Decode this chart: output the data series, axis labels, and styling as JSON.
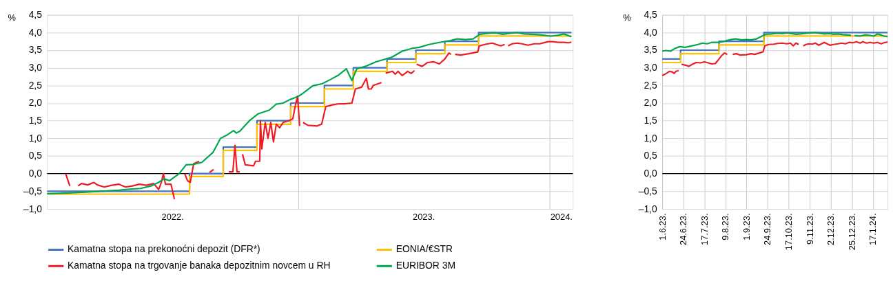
{
  "chart_data": [
    {
      "type": "line",
      "ylabel": "%",
      "xlim": [
        "2022-01-01",
        "2024-02-04"
      ],
      "xticks": [
        {
          "value": "2022-07-02",
          "label": "2022."
        },
        {
          "value": "2023-01-01",
          "label": null
        },
        {
          "value": "2023-07-02",
          "label": "2023."
        },
        {
          "value": "2024-01-01",
          "label": null
        },
        {
          "value": "2024-01-18",
          "label": "2024."
        }
      ],
      "ylim": [
        -1,
        4.5
      ],
      "yticks": [
        {
          "value": -1,
          "label": "–1,0"
        },
        {
          "value": -0.5,
          "label": "–0,5"
        },
        {
          "value": 0,
          "label": "0,0"
        },
        {
          "value": 0.5,
          "label": "0,5"
        },
        {
          "value": 1,
          "label": "1,0"
        },
        {
          "value": 1.5,
          "label": "1,5"
        },
        {
          "value": 2,
          "label": "2,0"
        },
        {
          "value": 2.5,
          "label": "2,5"
        },
        {
          "value": 3,
          "label": "3,0"
        },
        {
          "value": 3.5,
          "label": "3,5"
        },
        {
          "value": 4,
          "label": "4,0"
        },
        {
          "value": 4.5,
          "label": "4,5"
        }
      ],
      "grid": true,
      "legend": "bottom",
      "ref_lines": [
        {
          "axis": "y",
          "value": 0,
          "color": "#000000"
        }
      ],
      "series": [
        {
          "name": "Kamatna stopa na prekonoćni depozit (DFR*)",
          "color": "#4472c4",
          "type": "step",
          "x": [
            "2022-01-01",
            "2022-07-27",
            "2022-09-14",
            "2022-11-02",
            "2022-12-21",
            "2023-02-08",
            "2023-03-22",
            "2023-05-10",
            "2023-06-21",
            "2023-08-02",
            "2023-09-20",
            "2024-02-02"
          ],
          "values": [
            -0.5,
            0,
            0.75,
            1.5,
            2.0,
            2.5,
            3.0,
            3.25,
            3.5,
            3.75,
            4.0,
            4.0
          ]
        },
        {
          "name": "EONIA/€STR",
          "color": "#ffc000",
          "type": "step",
          "x": [
            "2022-01-01",
            "2022-07-27",
            "2022-09-14",
            "2022-11-02",
            "2022-12-21",
            "2023-02-08",
            "2023-03-22",
            "2023-05-10",
            "2023-06-21",
            "2023-08-02",
            "2023-09-20",
            "2024-02-02"
          ],
          "values": [
            -0.58,
            -0.08,
            0.66,
            1.4,
            1.9,
            2.4,
            2.9,
            3.15,
            3.4,
            3.65,
            3.9,
            3.9
          ]
        },
        {
          "name": "Kamatna stopa na trgovanje banaka depozitnim novcem u RH",
          "color": "#ed1c24",
          "type": "line",
          "x": [
            "2022-01-28",
            "2022-02-03",
            "2022-02-10",
            "2022-02-15",
            "2022-02-20",
            "2022-03-01",
            "2022-03-10",
            "2022-03-15",
            "2022-03-25",
            "2022-04-05",
            "2022-04-15",
            "2022-04-25",
            "2022-05-05",
            "2022-05-15",
            "2022-05-25",
            "2022-06-05",
            "2022-06-12",
            "2022-06-16",
            "2022-06-19",
            "2022-06-22",
            "2022-06-30",
            "2022-07-05",
            "2022-07-12",
            "2022-07-20",
            "2022-07-24",
            "2022-07-28",
            "2022-08-02",
            "2022-08-10",
            "2022-08-18",
            "2022-08-25",
            "2022-08-31",
            "2022-09-10",
            "2022-09-22",
            "2022-09-28",
            "2022-10-01",
            "2022-10-04",
            "2022-10-08",
            "2022-10-10",
            "2022-10-12",
            "2022-10-16",
            "2022-10-28",
            "2022-10-31",
            "2022-11-06",
            "2022-11-07",
            "2022-11-09",
            "2022-11-14",
            "2022-11-18",
            "2022-11-22",
            "2022-11-26",
            "2022-11-30",
            "2022-12-05",
            "2022-12-10",
            "2022-12-18",
            "2022-12-24",
            "2022-12-28",
            "2022-12-31",
            "2023-01-03",
            "2023-01-05",
            "2023-01-08",
            "2023-01-15",
            "2023-01-28",
            "2023-02-04",
            "2023-02-10",
            "2023-02-20",
            "2023-03-01",
            "2023-03-10",
            "2023-03-20",
            "2023-03-25",
            "2023-04-03",
            "2023-04-10",
            "2023-04-13",
            "2023-04-17",
            "2023-04-20",
            "2023-05-02",
            "2023-05-05",
            "2023-05-08",
            "2023-05-18",
            "2023-05-22",
            "2023-05-26",
            "2023-06-01",
            "2023-06-06",
            "2023-06-09",
            "2023-06-14",
            "2023-06-19",
            "2023-06-20",
            "2023-06-22",
            "2023-06-30",
            "2023-07-08",
            "2023-07-17",
            "2023-07-25",
            "2023-08-02",
            "2023-08-08",
            "2023-08-11",
            "2023-08-14",
            "2023-08-17",
            "2023-08-25",
            "2023-09-06",
            "2023-09-19",
            "2023-09-21",
            "2023-10-01",
            "2023-10-10",
            "2023-10-22",
            "2023-10-28",
            "2023-10-30",
            "2023-11-02",
            "2023-11-08",
            "2023-11-15",
            "2023-11-22",
            "2023-12-01",
            "2023-12-10",
            "2023-12-18",
            "2023-12-30",
            "2024-01-06",
            "2024-01-14",
            "2024-01-22",
            "2024-01-29",
            "2024-02-02"
          ],
          "values": [
            0.0,
            -0.35,
            null,
            -0.35,
            -0.28,
            -0.32,
            -0.25,
            -0.32,
            -0.38,
            -0.33,
            -0.3,
            -0.38,
            -0.35,
            -0.3,
            -0.33,
            -0.28,
            -0.45,
            -0.25,
            0.0,
            -0.3,
            -0.3,
            -0.72,
            null,
            0.0,
            -0.2,
            -0.25,
            0.28,
            0.35,
            null,
            0.03,
            0.12,
            null,
            0.05,
            0.05,
            0.8,
            0.05,
            0.05,
            null,
            0.55,
            0.25,
            0.22,
            0.35,
            0.35,
            1.5,
            0.7,
            1.45,
            1.0,
            1.45,
            0.9,
            1.4,
            1.3,
            1.45,
            1.5,
            1.55,
            1.95,
            2.2,
            1.35,
            null,
            1.45,
            1.37,
            1.35,
            1.4,
            1.9,
            1.95,
            1.98,
            1.98,
            2.0,
            2.4,
            2.45,
            2.7,
            2.4,
            2.4,
            2.5,
            2.58,
            null,
            2.85,
            2.9,
            2.82,
            2.9,
            2.78,
            2.85,
            2.9,
            2.84,
            2.92,
            null,
            3.1,
            3.04,
            3.15,
            3.17,
            3.11,
            3.25,
            3.42,
            3.38,
            null,
            3.38,
            3.36,
            3.4,
            3.45,
            3.62,
            3.67,
            3.7,
            3.62,
            3.66,
            null,
            3.62,
            3.68,
            3.7,
            3.68,
            3.64,
            3.68,
            3.68,
            3.74,
            3.74,
            3.72,
            3.72,
            3.71,
            3.73
          ]
        },
        {
          "name": "EURIBOR 3M",
          "color": "#00a650",
          "type": "line",
          "x": [
            "2022-01-01",
            "2022-01-20",
            "2022-02-10",
            "2022-03-03",
            "2022-03-20",
            "2022-04-15",
            "2022-05-01",
            "2022-05-17",
            "2022-06-01",
            "2022-06-12",
            "2022-06-20",
            "2022-06-28",
            "2022-07-12",
            "2022-07-22",
            "2022-08-01",
            "2022-08-14",
            "2022-08-30",
            "2022-09-10",
            "2022-09-20",
            "2022-09-29",
            "2022-10-03",
            "2022-10-08",
            "2022-10-22",
            "2022-11-04",
            "2022-11-20",
            "2022-11-30",
            "2022-12-10",
            "2022-12-20",
            "2022-12-27",
            "2023-01-02",
            "2023-01-08",
            "2023-01-22",
            "2023-02-05",
            "2023-02-17",
            "2023-03-01",
            "2023-03-12",
            "2023-03-16",
            "2023-03-20",
            "2023-03-27",
            "2023-04-10",
            "2023-04-24",
            "2023-05-17",
            "2023-06-01",
            "2023-06-15",
            "2023-06-26",
            "2023-07-10",
            "2023-07-25",
            "2023-08-10",
            "2023-08-20",
            "2023-09-01",
            "2023-09-12",
            "2023-09-22",
            "2023-10-05",
            "2023-10-15",
            "2023-10-25",
            "2023-11-05",
            "2023-11-15",
            "2023-11-25",
            "2023-12-05",
            "2023-12-15",
            "2023-12-24",
            "2024-01-03",
            "2024-01-13",
            "2024-01-22",
            "2024-02-02"
          ],
          "values": [
            -0.57,
            -0.56,
            -0.54,
            -0.52,
            -0.5,
            -0.47,
            -0.44,
            -0.42,
            -0.35,
            -0.25,
            -0.15,
            -0.2,
            0.0,
            0.25,
            0.26,
            0.32,
            0.6,
            1.0,
            1.1,
            1.22,
            1.15,
            1.2,
            1.5,
            1.7,
            1.8,
            1.97,
            2.0,
            2.1,
            2.15,
            2.2,
            2.28,
            2.49,
            2.55,
            2.67,
            2.8,
            2.97,
            2.8,
            2.64,
            2.97,
            3.05,
            3.17,
            3.3,
            3.47,
            3.55,
            3.58,
            3.66,
            3.72,
            3.77,
            3.82,
            3.8,
            3.82,
            3.95,
            3.98,
            3.99,
            3.95,
            3.98,
            4.0,
            3.96,
            3.95,
            3.94,
            3.92,
            3.9,
            3.92,
            3.96,
            3.88
          ]
        }
      ]
    },
    {
      "type": "line",
      "ylabel": "%",
      "xlim": [
        "2023-06-01",
        "2024-02-02"
      ],
      "xticks": [
        {
          "value": "2023-06-01",
          "label": "1.6.23."
        },
        {
          "value": "2023-06-24",
          "label": "24.6.23."
        },
        {
          "value": "2023-07-17",
          "label": "17.7.23."
        },
        {
          "value": "2023-08-09",
          "label": "9.8.23."
        },
        {
          "value": "2023-09-01",
          "label": "1.9.23."
        },
        {
          "value": "2023-09-24",
          "label": "24.9.23."
        },
        {
          "value": "2023-10-17",
          "label": "17.10.23."
        },
        {
          "value": "2023-11-09",
          "label": "9.11.23."
        },
        {
          "value": "2023-12-02",
          "label": "2.12.23."
        },
        {
          "value": "2023-12-25",
          "label": "25.12.23."
        },
        {
          "value": "2024-01-17",
          "label": "17.1.24."
        }
      ],
      "ylim": [
        -1,
        4.5
      ],
      "yticks": [
        {
          "value": -1,
          "label": "–1,0"
        },
        {
          "value": -0.5,
          "label": "–0,5"
        },
        {
          "value": 0,
          "label": "0,0"
        },
        {
          "value": 0.5,
          "label": "0,5"
        },
        {
          "value": 1,
          "label": "1,0"
        },
        {
          "value": 1.5,
          "label": "1,5"
        },
        {
          "value": 2,
          "label": "2,0"
        },
        {
          "value": 2.5,
          "label": "2,5"
        },
        {
          "value": 3,
          "label": "3,0"
        },
        {
          "value": 3.5,
          "label": "3,5"
        },
        {
          "value": 4,
          "label": "4,0"
        },
        {
          "value": 4.5,
          "label": "4,5"
        }
      ],
      "grid": true,
      "ref_lines": [
        {
          "axis": "y",
          "value": 0,
          "color": "#000000"
        }
      ],
      "series": [
        {
          "color": "#4472c4",
          "type": "step",
          "x": [
            "2023-06-01",
            "2023-06-21",
            "2023-08-02",
            "2023-09-20",
            "2024-02-02"
          ],
          "values": [
            3.25,
            3.5,
            3.75,
            4.0,
            4.0
          ]
        },
        {
          "color": "#ffc000",
          "type": "step",
          "x": [
            "2023-06-01",
            "2023-06-21",
            "2023-08-02",
            "2023-09-20",
            "2024-02-02"
          ],
          "values": [
            3.15,
            3.4,
            3.65,
            3.9,
            3.9
          ]
        },
        {
          "color": "#ed1c24",
          "type": "line",
          "x": [
            "2023-06-01",
            "2023-06-04",
            "2023-06-06",
            "2023-06-09",
            "2023-06-12",
            "2023-06-14",
            "2023-06-16",
            "2023-06-19",
            "2023-06-20",
            "2023-06-22",
            "2023-06-27",
            "2023-06-30",
            "2023-07-04",
            "2023-07-08",
            "2023-07-13",
            "2023-07-17",
            "2023-07-21",
            "2023-07-25",
            "2023-07-29",
            "2023-08-02",
            "2023-08-05",
            "2023-08-08",
            "2023-08-11",
            "2023-08-14",
            "2023-08-17",
            "2023-08-21",
            "2023-08-25",
            "2023-09-01",
            "2023-09-06",
            "2023-09-10",
            "2023-09-15",
            "2023-09-19",
            "2023-09-21",
            "2023-09-25",
            "2023-10-01",
            "2023-10-05",
            "2023-10-10",
            "2023-10-15",
            "2023-10-19",
            "2023-10-22",
            "2023-10-25",
            "2023-10-28",
            "2023-10-30",
            "2023-11-02",
            "2023-11-05",
            "2023-11-08",
            "2023-11-12",
            "2023-11-15",
            "2023-11-19",
            "2023-11-22",
            "2023-11-25",
            "2023-11-28",
            "2023-12-01",
            "2023-12-05",
            "2023-12-10",
            "2023-12-14",
            "2023-12-18",
            "2023-12-22",
            "2023-12-26",
            "2023-12-30",
            "2024-01-03",
            "2024-01-06",
            "2024-01-10",
            "2024-01-14",
            "2024-01-18",
            "2024-01-22",
            "2024-01-26",
            "2024-01-29",
            "2024-02-02"
          ],
          "values": [
            2.78,
            2.82,
            2.85,
            2.9,
            2.88,
            2.84,
            2.9,
            2.92,
            null,
            3.1,
            3.07,
            3.04,
            3.1,
            3.15,
            3.14,
            3.17,
            3.14,
            3.11,
            3.12,
            3.25,
            3.35,
            3.42,
            3.38,
            null,
            3.38,
            3.4,
            3.36,
            3.37,
            3.4,
            3.38,
            3.42,
            3.45,
            3.62,
            3.66,
            3.67,
            3.69,
            3.7,
            3.68,
            3.7,
            3.62,
            3.7,
            3.66,
            null,
            3.62,
            3.66,
            3.68,
            3.67,
            3.7,
            3.64,
            3.68,
            3.72,
            3.68,
            3.64,
            3.66,
            3.68,
            3.7,
            3.68,
            3.72,
            3.71,
            3.74,
            3.7,
            3.74,
            3.7,
            3.72,
            3.7,
            3.72,
            3.68,
            3.71,
            3.73
          ]
        },
        {
          "color": "#00a650",
          "type": "line",
          "x": [
            "2023-06-01",
            "2023-06-05",
            "2023-06-10",
            "2023-06-15",
            "2023-06-20",
            "2023-06-26",
            "2023-07-03",
            "2023-07-10",
            "2023-07-15",
            "2023-07-20",
            "2023-07-25",
            "2023-08-01",
            "2023-08-06",
            "2023-08-10",
            "2023-08-15",
            "2023-08-20",
            "2023-08-27",
            "2023-09-01",
            "2023-09-06",
            "2023-09-12",
            "2023-09-18",
            "2023-09-22",
            "2023-09-28",
            "2023-10-05",
            "2023-10-10",
            "2023-10-15",
            "2023-10-20",
            "2023-10-25",
            "2023-10-30",
            "2023-11-05",
            "2023-11-10",
            "2023-11-15",
            "2023-11-20",
            "2023-11-25",
            "2023-12-01",
            "2023-12-05",
            "2023-12-10",
            "2023-12-15",
            "2023-12-20",
            "2023-12-24",
            "2023-12-26",
            "2023-12-28",
            "2024-01-03",
            "2024-01-08",
            "2024-01-13",
            "2024-01-18",
            "2024-01-22",
            "2024-01-26",
            "2024-01-29",
            "2024-02-02"
          ],
          "values": [
            3.47,
            3.49,
            3.47,
            3.55,
            3.6,
            3.58,
            3.62,
            3.66,
            3.7,
            3.68,
            3.72,
            3.72,
            3.74,
            3.77,
            3.8,
            3.82,
            3.79,
            3.8,
            3.79,
            3.82,
            3.9,
            3.95,
            3.96,
            3.98,
            3.97,
            3.99,
            3.97,
            3.95,
            3.96,
            3.98,
            3.99,
            4.0,
            3.98,
            3.96,
            3.97,
            3.95,
            3.96,
            3.94,
            3.93,
            3.92,
            null,
            3.91,
            3.9,
            3.93,
            3.92,
            3.9,
            3.96,
            3.93,
            3.9,
            3.88
          ]
        }
      ]
    }
  ]
}
